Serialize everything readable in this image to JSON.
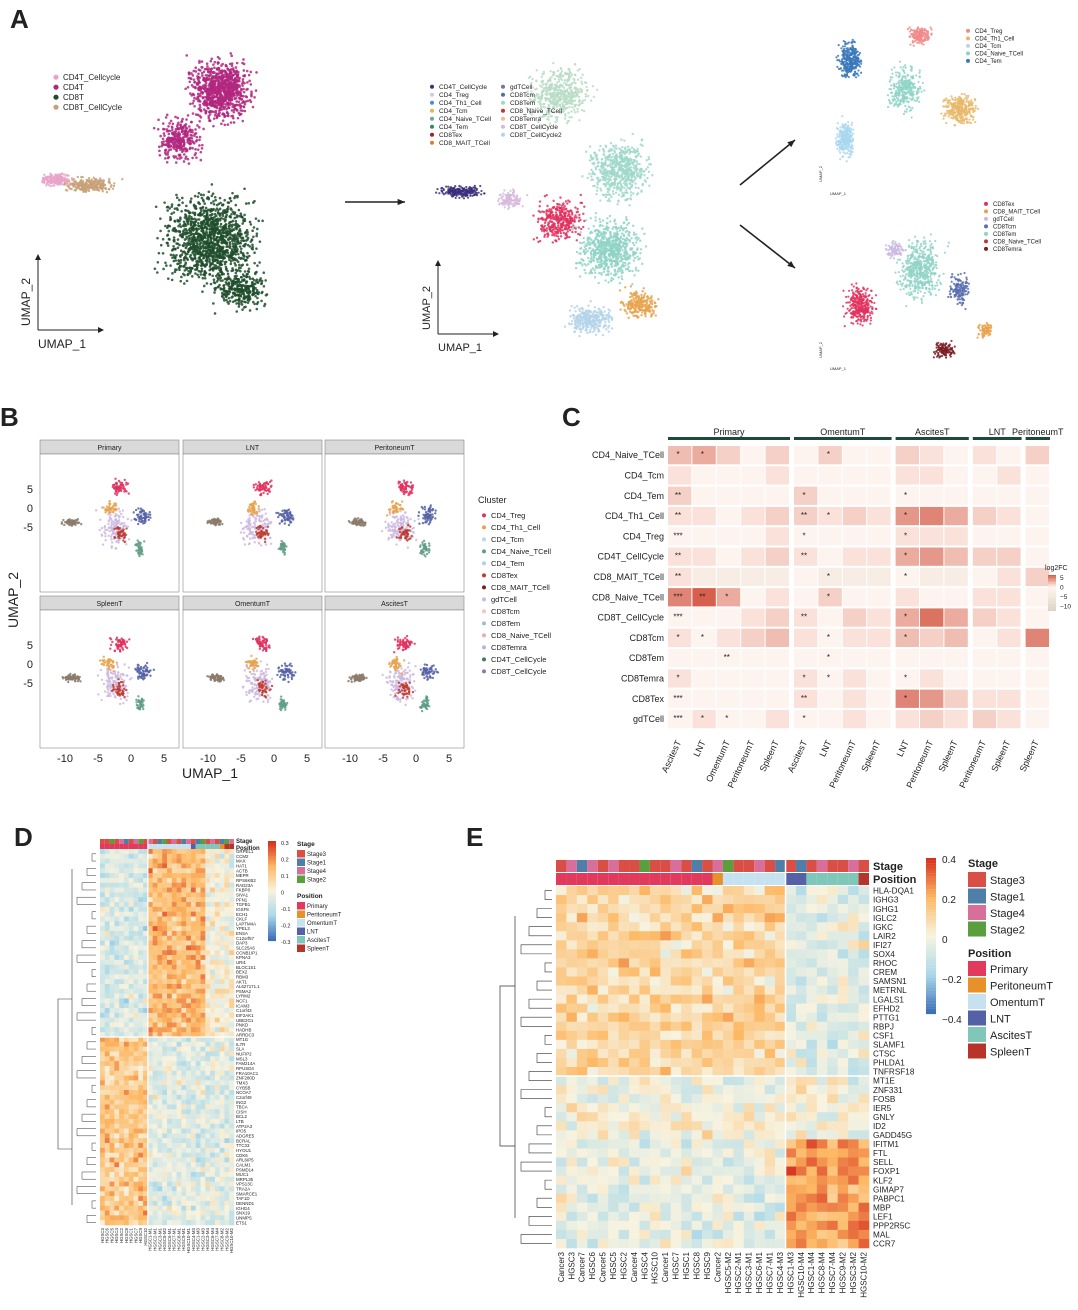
{
  "panel_letters": [
    "A",
    "B",
    "C",
    "D",
    "E"
  ],
  "panelA": {
    "umap1": "UMAP_1",
    "umap2": "UMAP_2",
    "legend1": [
      "CD4T_Cellcycle",
      "CD4T",
      "CD8T",
      "CD8T_CellCycle"
    ],
    "legend1_colors": [
      "#e9a3c9",
      "#b2277e",
      "#1f4d2c",
      "#c8a179"
    ],
    "legend2": [
      "CD4T_CellCycle",
      "CD4_Treg",
      "CD4_Th1_Cell",
      "CD4_Tcm",
      "CD4_Naive_TCell",
      "CD4_Tem",
      "CD8Tex",
      "CD8_MAIT_TCell",
      "gdTCell",
      "CD8Tcm",
      "CD8Tem",
      "CD8_Naive_TCell",
      "CD8Temra",
      "CD8T_CellCycle",
      "CD8T_CellCycle2"
    ],
    "legend2_colors": [
      "#3a2f7a",
      "#d7c7e6",
      "#4a8ecb",
      "#e3b84a",
      "#6fa8a2",
      "#2e8b57",
      "#9e1c3a",
      "#e07b2a",
      "#7b6bb3",
      "#4f6fa8",
      "#9fd8c9",
      "#c0392b",
      "#f2b8a0",
      "#d6b9dd",
      "#b4d3ea"
    ],
    "legend3": [
      "CD4_Treg",
      "CD4_Th1_Cell",
      "CD4_Tcm",
      "CD4_Naive_TCell",
      "CD4_Tem"
    ],
    "legend3_colors": [
      "#f08a8a",
      "#e8b86a",
      "#b9d6ea",
      "#8fd3c7",
      "#3a78b8"
    ],
    "legend4": [
      "CD8Tex",
      "CD8_MAIT_TCell",
      "gdTCell",
      "CD8Tcm",
      "CD8Tem",
      "CD8_Naive_TCell",
      "CD8Temra"
    ],
    "legend4_colors": [
      "#e0315e",
      "#e8a24a",
      "#cdb8e0",
      "#5a6fb0",
      "#8fd3c7",
      "#c0392b",
      "#7a1f24"
    ],
    "umap1_small": "UMAP_1",
    "umap2_small": "UMAP_2"
  },
  "panelB": {
    "facets": [
      "Primary",
      "LNT",
      "PeritoneumT",
      "SpleenT",
      "OmentumT",
      "AscitesT"
    ],
    "xlabel": "UMAP_1",
    "ylabel": "UMAP_2",
    "xticks": [
      "-10",
      "-5",
      "0",
      "5"
    ],
    "yticks": [
      "5",
      "0",
      "-5"
    ],
    "legend_title": "Cluster",
    "clusters": [
      "CD4_Treg",
      "CD4_Th1_Cell",
      "CD4_Tcm",
      "CD4_Naive_TCell",
      "CD4_Tem",
      "CD8Tex",
      "CD8_MAIT_TCell",
      "gdTCell",
      "CD8Tcm",
      "CD8Tem",
      "CD8_Naive_TCell",
      "CD8Temra",
      "CD4T_CellCycle",
      "CD8T_CellCycle"
    ],
    "cluster_colors": [
      "#e0315e",
      "#e8a24a",
      "#b9d6ea",
      "#5f9e86",
      "#a9d3e3",
      "#c0392b",
      "#7a1f24",
      "#cdb8e0",
      "#f2c4c4",
      "#9fb9e3",
      "#f0a9b6",
      "#bfb0d8",
      "#3e7a5f",
      "#8c7ab8"
    ]
  },
  "panelC": {
    "groups": [
      "Primary",
      "OmentumT",
      "AscitesT",
      "LNT",
      "PeritoneumT"
    ],
    "rows": [
      "CD4_Naive_TCell",
      "CD4_Tcm",
      "CD4_Tem",
      "CD4_Th1_Cell",
      "CD4_Treg",
      "CD4T_CellCycle",
      "CD8_MAIT_TCell",
      "CD8_Naive_TCell",
      "CD8T_CellCycle",
      "CD8Tcm",
      "CD8Tem",
      "CD8Temra",
      "CD8Tex",
      "gdTCell"
    ],
    "columns": [
      "AscitesT",
      "LNT",
      "OmentumT",
      "PeritoneumT",
      "SpleenT",
      "AscitesT",
      "LNT",
      "PeritoneumT",
      "SpleenT",
      "LNT",
      "PeritoneumT",
      "SpleenT",
      "PeritoneumT",
      "SpleenT",
      "SpleenT"
    ],
    "legend_title": "log2FC",
    "legend_ticks": [
      "5",
      "0",
      "−5",
      "−10"
    ],
    "stars": [
      [
        "*",
        "*",
        "",
        "",
        "",
        "",
        "*",
        "",
        "",
        "",
        "",
        "",
        "",
        "",
        ""
      ],
      [
        "",
        "",
        "",
        "",
        "",
        "",
        "",
        "",
        "",
        "",
        "",
        "",
        "",
        "",
        ""
      ],
      [
        "**",
        "",
        "",
        "",
        "",
        "*",
        "",
        "",
        "",
        "*",
        "",
        "",
        "",
        "",
        ""
      ],
      [
        "**",
        "",
        "",
        "",
        "",
        "**",
        "*",
        "",
        "",
        "*",
        "",
        "",
        "",
        "",
        ""
      ],
      [
        "***",
        "",
        "",
        "",
        "",
        "*",
        "",
        "",
        "",
        "*",
        "",
        "",
        "",
        "",
        ""
      ],
      [
        "**",
        "",
        "",
        "",
        "",
        "**",
        "",
        "",
        "",
        "*",
        "",
        "",
        "",
        "",
        ""
      ],
      [
        "**",
        "",
        "",
        "",
        "",
        "",
        "*",
        "",
        "",
        "*",
        "",
        "",
        "",
        "",
        ""
      ],
      [
        "***",
        "**",
        "*",
        "",
        "",
        "",
        "*",
        "",
        "",
        "",
        "",
        "",
        "",
        "",
        ""
      ],
      [
        "***",
        "",
        "",
        "",
        "",
        "**",
        "",
        "",
        "",
        "*",
        "",
        "",
        "",
        "",
        ""
      ],
      [
        "*",
        "*",
        "",
        "",
        "",
        "",
        "*",
        "",
        "",
        "*",
        "",
        "",
        "",
        "",
        ""
      ],
      [
        "",
        "",
        "**",
        "",
        "",
        "",
        "*",
        "",
        "",
        "",
        "",
        "",
        "",
        "",
        ""
      ],
      [
        "*",
        "",
        "",
        "",
        "",
        "*",
        "*",
        "",
        "",
        "*",
        "",
        "",
        "",
        "",
        ""
      ],
      [
        "***",
        "",
        "",
        "",
        "",
        "**",
        "",
        "",
        "",
        "*",
        "",
        "",
        "",
        "",
        ""
      ],
      [
        "***",
        "*",
        "*",
        "",
        "",
        "*",
        "",
        "",
        "",
        "",
        "",
        "",
        "",
        "",
        ""
      ]
    ],
    "values": [
      [
        3,
        4,
        2,
        0,
        2,
        0,
        2,
        0,
        0,
        2,
        1,
        0,
        1,
        0,
        2
      ],
      [
        1,
        0,
        0,
        0,
        1,
        0,
        0,
        0,
        0,
        1,
        1,
        0,
        0,
        1,
        0
      ],
      [
        2,
        0,
        0,
        0,
        0,
        2,
        0,
        0,
        0,
        0,
        0,
        0,
        0,
        0,
        0
      ],
      [
        1,
        1,
        0,
        1,
        2,
        2,
        1,
        2,
        1,
        5,
        6,
        4,
        2,
        1,
        0
      ],
      [
        0,
        0,
        0,
        0,
        1,
        0,
        0,
        0,
        0,
        1,
        1,
        1,
        0,
        0,
        0
      ],
      [
        1,
        1,
        0,
        1,
        2,
        1,
        0,
        1,
        1,
        4,
        5,
        3,
        2,
        2,
        0
      ],
      [
        1,
        -1,
        -1,
        -1,
        -1,
        0,
        -1,
        -1,
        -1,
        0,
        -1,
        -1,
        0,
        1,
        2
      ],
      [
        6,
        8,
        4,
        0,
        1,
        0,
        2,
        0,
        0,
        1,
        0,
        0,
        1,
        1,
        0
      ],
      [
        0,
        0,
        0,
        1,
        2,
        1,
        0,
        2,
        1,
        4,
        7,
        4,
        2,
        1,
        0
      ],
      [
        1,
        0,
        1,
        2,
        3,
        1,
        0,
        1,
        1,
        3,
        2,
        3,
        0,
        1,
        6
      ],
      [
        0,
        0,
        0,
        0,
        0,
        0,
        0,
        0,
        0,
        0,
        0,
        0,
        0,
        0,
        0
      ],
      [
        1,
        0,
        0,
        0,
        0,
        1,
        0,
        1,
        0,
        0,
        1,
        0,
        0,
        0,
        0
      ],
      [
        0,
        0,
        0,
        0,
        0,
        1,
        0,
        1,
        0,
        6,
        5,
        2,
        1,
        1,
        0
      ],
      [
        0,
        1,
        0,
        0,
        1,
        0,
        0,
        1,
        0,
        1,
        2,
        1,
        2,
        1,
        0
      ]
    ]
  },
  "panelD": {
    "track_stage": "Stage",
    "track_position": "Position",
    "legend_ticks": [
      "0.3",
      "0.2",
      "0.1",
      "0",
      "-0.1",
      "-0.2",
      "-0.3"
    ],
    "stage_title": "Stage",
    "stages": [
      "Stage3",
      "Stage1",
      "Stage4",
      "Stage2"
    ],
    "stage_colors": [
      "#d94f45",
      "#4f7fa8",
      "#d76f9a",
      "#5a9e3e"
    ],
    "position_title": "Position",
    "positions": [
      "Primary",
      "PeritoneumT",
      "OmentumT",
      "LNT",
      "AscitesT",
      "SpleenT"
    ],
    "position_colors": [
      "#e23a5c",
      "#e8902a",
      "#c6e2f0",
      "#5561a6",
      "#7fc7b8",
      "#b8342a"
    ],
    "genes": [
      "GRPEL1",
      "CCM2",
      "MAX",
      "HAT1",
      "ACTB",
      "MEPR",
      "RPS6KB2",
      "RAD23A",
      "FKBP8",
      "SIVA1",
      "PFN1",
      "TGFB1",
      "IGSF8",
      "ECH1",
      "CKLF",
      "LAPTM4A",
      "YPEL3",
      "ENSA",
      "C12orf57",
      "DAP3",
      "SLC25A6",
      "CCNB1IP1",
      "KPNA3",
      "URI1",
      "BLOC1S1",
      "BEX2",
      "RBM3",
      "AKT1",
      "AL627171.1",
      "PSMA2",
      "LYRM2",
      "NCF1",
      "ICAM3",
      "C1orf43",
      "EIF2AK1",
      "UBE2G1",
      "PNKD",
      "HADHB",
      "ARRDC3",
      "MT1G",
      "IL7R",
      "SLA",
      "NUFIP2",
      "MSL3",
      "FAM214A",
      "RPUSD4",
      "FRA10AC1",
      "ZNF280D",
      "TMX3",
      "CYB5B",
      "NCOA7",
      "C2orf49",
      "ING2",
      "TBCA",
      "CISH",
      "BCL2",
      "LTB",
      "ATP2A3",
      "IPO5",
      "ADGRE5",
      "BCRAL",
      "TTC33",
      "HYOU1",
      "CDK6",
      "ARL6IP5",
      "CALM1",
      "PSMD14",
      "MUC1",
      "MRPL35",
      "VPS13C",
      "TRA2A",
      "SMARCE1",
      "TAF1D",
      "DENND1",
      "IGHG4",
      "SNX19",
      "UNMPS",
      "ETS1"
    ],
    "samples": [
      "HGSC3",
      "HGSC6",
      "HGSC5",
      "HGSC4",
      "HGSC2",
      "HGSC8",
      "HGSC1",
      "HGSC7",
      "HGSC9",
      "HGSC10",
      "HGSC1-M1",
      "HGSC2-M1",
      "HGSC3-M1",
      "HGSC5-M2",
      "HGSC6-M1",
      "HGSC7-M1",
      "HGSC8-M1",
      "HGSC9-M1",
      "HGSC10-M1",
      "HGSC4-M3",
      "HGSC1-M3",
      "HGSC2-M3",
      "HGSC3-M4",
      "HGSC6-M4",
      "HGSC7-M4",
      "HGSC8-M2",
      "HGSC9-M2",
      "HGSC10-M2"
    ]
  },
  "panelE": {
    "track_stage": "Stage",
    "track_position": "Position",
    "legend_ticks": [
      "0.4",
      "0.2",
      "0",
      "−0.2",
      "−0.4"
    ],
    "stage_title": "Stage",
    "stages": [
      "Stage3",
      "Stage1",
      "Stage4",
      "Stage2"
    ],
    "stage_colors": [
      "#d94f45",
      "#4f7fa8",
      "#d76f9a",
      "#5a9e3e"
    ],
    "position_title": "Position",
    "positions": [
      "Primary",
      "PeritoneumT",
      "OmentumT",
      "LNT",
      "AscitesT",
      "SpleenT"
    ],
    "position_colors": [
      "#e23a5c",
      "#e8902a",
      "#c6e2f0",
      "#5561a6",
      "#7fc7b8",
      "#b8342a"
    ],
    "genes": [
      "HLA-DQA1",
      "IGHG3",
      "IGHG1",
      "IGLC2",
      "IGKC",
      "LAIR2",
      "IFI27",
      "SOX4",
      "RHOC",
      "CREM",
      "SAMSN1",
      "METRNL",
      "LGALS1",
      "EFHD2",
      "PTTG1",
      "RBPJ",
      "CSF1",
      "SLAMF1",
      "CTSC",
      "PHLDA1",
      "TNFRSF18",
      "MT1E",
      "ZNF331",
      "FOSB",
      "IER5",
      "GNLY",
      "ID2",
      "GADD45G",
      "IFITM1",
      "FTL",
      "SELL",
      "FOXP1",
      "KLF2",
      "GIMAP7",
      "PABPC1",
      "MBP",
      "LEF1",
      "PPP2R5C",
      "MAL",
      "CCR7"
    ],
    "samples": [
      "Cancer3",
      "HGSC3",
      "Cancer7",
      "HGSC6",
      "Cancer5",
      "HGSC5",
      "HGSC2",
      "Cancer4",
      "HGSC4",
      "HGSC10",
      "Cancer1",
      "HGSC7",
      "HGSC1",
      "HGSC8",
      "HGSC9",
      "Cancer2",
      "HGSC5-M2",
      "HGSC2-M1",
      "HGSC3-M1",
      "HGSC6-M1",
      "HGSC7-M1",
      "HGSC4-M3",
      "HGSC1-M3",
      "HGSC10-M4",
      "HGSC1-M4",
      "HGSC8-M4",
      "HGSC7-M4",
      "HGSC9-M2",
      "HGSC3-M2",
      "HGSC10-M2"
    ]
  }
}
